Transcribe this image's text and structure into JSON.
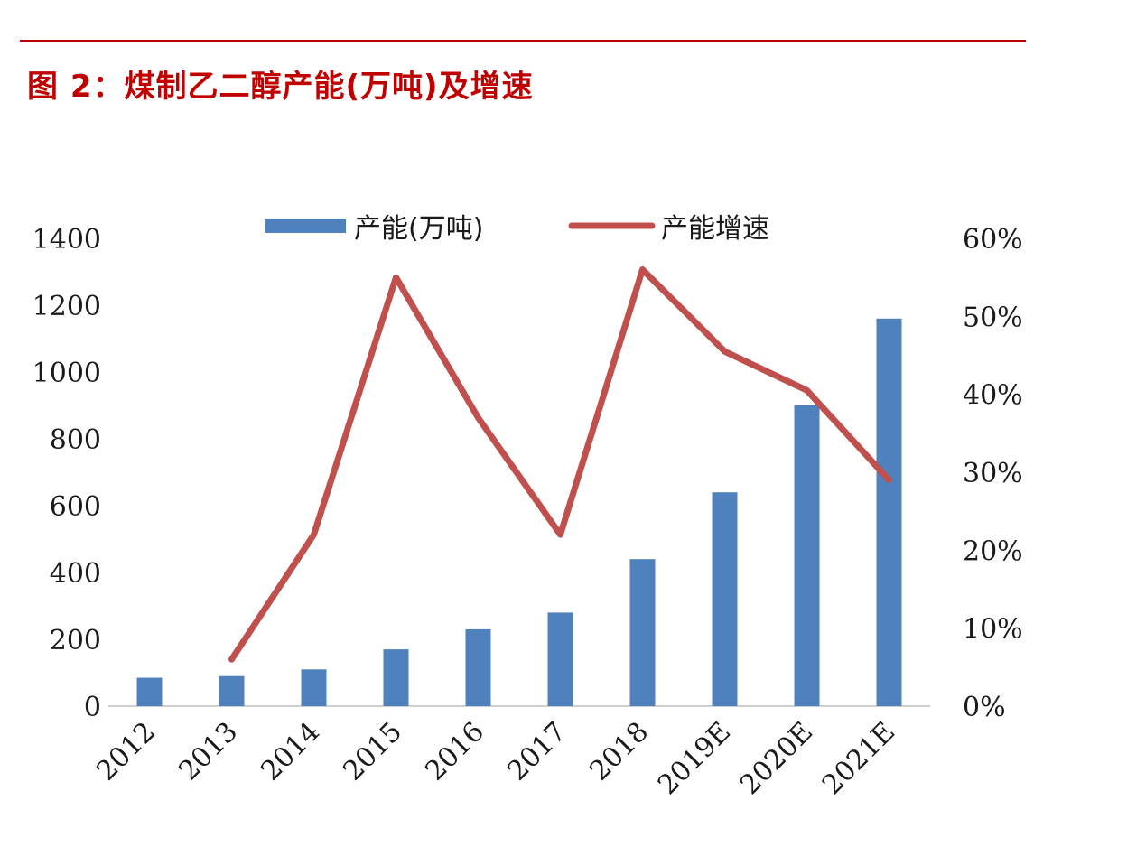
{
  "figure_title": "图 2：煤制乙二醇产能(万吨)及增速",
  "colors": {
    "bar": "#4f81bd",
    "line": "#c0504d",
    "title": "#c00000"
  },
  "chart_data": {
    "type": "bar",
    "categories": [
      "2012",
      "2013",
      "2014",
      "2015",
      "2016",
      "2017",
      "2018",
      "2019E",
      "2020E",
      "2021E"
    ],
    "series": [
      {
        "name": "产能(万吨)",
        "type": "bar",
        "axis": "left",
        "values": [
          85,
          90,
          110,
          170,
          230,
          280,
          440,
          640,
          900,
          1160
        ]
      },
      {
        "name": "产能增速",
        "type": "line",
        "axis": "right",
        "values": [
          null,
          0.06,
          0.22,
          0.55,
          0.37,
          0.22,
          0.56,
          0.455,
          0.405,
          0.29
        ]
      }
    ],
    "y_left": {
      "min": 0,
      "max": 1400,
      "ticks": [
        "0",
        "200",
        "400",
        "600",
        "800",
        "1000",
        "1200",
        "1400"
      ]
    },
    "y_right": {
      "min": 0,
      "max": 0.6,
      "ticks": [
        "0%",
        "10%",
        "20%",
        "30%",
        "40%",
        "50%",
        "60%"
      ]
    },
    "legend_position": "top",
    "grid": false
  }
}
